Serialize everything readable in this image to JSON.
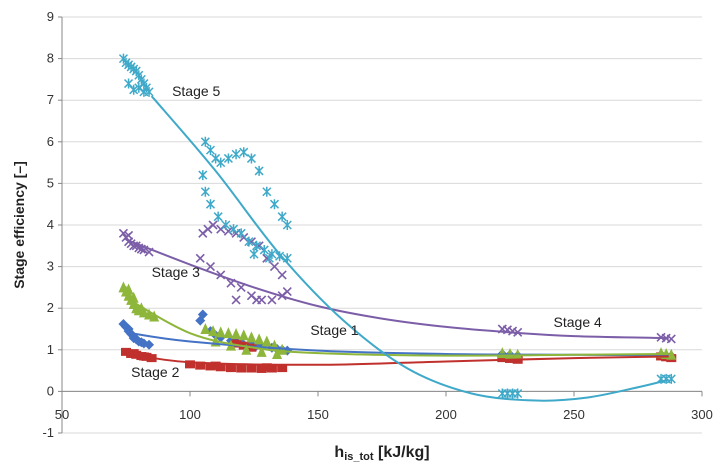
{
  "chart_data": {
    "type": "scatter",
    "title": "",
    "xlabel_main": "h",
    "xlabel_sub": "is_tot",
    "xlabel_unit": " [kJ/kg]",
    "ylabel": "Stage efficiency [–]",
    "xlim": [
      50,
      300
    ],
    "ylim": [
      -1,
      9
    ],
    "x_ticks": [
      "50",
      "100",
      "150",
      "200",
      "250",
      "300"
    ],
    "y_ticks": [
      "-1",
      "0",
      "1",
      "2",
      "3",
      "4",
      "5",
      "6",
      "7",
      "8",
      "9"
    ],
    "grid": "horizontal",
    "series": [
      {
        "name": "Stage 1",
        "color": "#4472c4",
        "marker": "diamond",
        "points": [
          [
            74,
            1.62
          ],
          [
            75,
            1.55
          ],
          [
            76,
            1.45
          ],
          [
            77,
            1.38
          ],
          [
            78,
            1.32
          ],
          [
            79,
            1.25
          ],
          [
            80,
            1.2
          ],
          [
            82,
            1.15
          ],
          [
            84,
            1.12
          ],
          [
            76,
            1.5
          ],
          [
            78,
            1.28
          ],
          [
            81,
            1.18
          ],
          [
            105,
            1.85
          ],
          [
            104,
            1.7
          ],
          [
            108,
            1.45
          ],
          [
            112,
            1.3
          ],
          [
            116,
            1.22
          ],
          [
            120,
            1.18
          ],
          [
            124,
            1.12
          ],
          [
            128,
            1.08
          ],
          [
            132,
            1.05
          ],
          [
            136,
            1.0
          ],
          [
            110,
            1.35
          ],
          [
            118,
            1.2
          ],
          [
            126,
            1.1
          ],
          [
            134,
            1.02
          ],
          [
            138,
            0.98
          ],
          [
            222,
            0.9
          ],
          [
            225,
            0.88
          ],
          [
            228,
            0.86
          ],
          [
            284,
            0.88
          ],
          [
            286,
            0.86
          ],
          [
            288,
            0.85
          ]
        ],
        "trend": [
          [
            75,
            1.42
          ],
          [
            100,
            1.2
          ],
          [
            150,
            0.98
          ],
          [
            200,
            0.9
          ],
          [
            250,
            0.88
          ],
          [
            287,
            0.87
          ]
        ]
      },
      {
        "name": "Stage 2",
        "color": "#c0302c",
        "marker": "square",
        "points": [
          [
            75,
            0.95
          ],
          [
            77,
            0.9
          ],
          [
            79,
            0.88
          ],
          [
            81,
            0.85
          ],
          [
            83,
            0.83
          ],
          [
            85,
            0.8
          ],
          [
            78,
            0.92
          ],
          [
            82,
            0.84
          ],
          [
            100,
            0.65
          ],
          [
            104,
            0.62
          ],
          [
            108,
            0.6
          ],
          [
            112,
            0.58
          ],
          [
            116,
            0.56
          ],
          [
            120,
            0.55
          ],
          [
            124,
            0.55
          ],
          [
            128,
            0.54
          ],
          [
            132,
            0.55
          ],
          [
            136,
            0.56
          ],
          [
            118,
            1.15
          ],
          [
            121,
            1.1
          ],
          [
            124,
            1.05
          ],
          [
            110,
            0.62
          ],
          [
            130,
            0.58
          ],
          [
            222,
            0.8
          ],
          [
            225,
            0.78
          ],
          [
            228,
            0.76
          ],
          [
            284,
            0.84
          ],
          [
            286,
            0.82
          ],
          [
            288,
            0.8
          ]
        ],
        "trend": [
          [
            75,
            0.92
          ],
          [
            100,
            0.7
          ],
          [
            150,
            0.64
          ],
          [
            200,
            0.72
          ],
          [
            250,
            0.8
          ],
          [
            287,
            0.84
          ]
        ]
      },
      {
        "name": "Stage 3",
        "color": "#8db63a",
        "marker": "triangle",
        "points": [
          [
            74,
            2.5
          ],
          [
            75,
            2.4
          ],
          [
            76,
            2.3
          ],
          [
            77,
            2.2
          ],
          [
            78,
            2.1
          ],
          [
            79,
            2.0
          ],
          [
            80,
            1.95
          ],
          [
            82,
            1.9
          ],
          [
            84,
            1.85
          ],
          [
            86,
            1.8
          ],
          [
            76,
            2.45
          ],
          [
            78,
            2.25
          ],
          [
            81,
            2.0
          ],
          [
            106,
            1.5
          ],
          [
            109,
            1.45
          ],
          [
            112,
            1.42
          ],
          [
            115,
            1.4
          ],
          [
            118,
            1.38
          ],
          [
            121,
            1.35
          ],
          [
            124,
            1.3
          ],
          [
            127,
            1.25
          ],
          [
            130,
            1.2
          ],
          [
            133,
            1.1
          ],
          [
            136,
            1.0
          ],
          [
            110,
            1.2
          ],
          [
            116,
            1.1
          ],
          [
            122,
            1.0
          ],
          [
            128,
            0.95
          ],
          [
            134,
            0.9
          ],
          [
            222,
            0.92
          ],
          [
            225,
            0.9
          ],
          [
            228,
            0.88
          ],
          [
            284,
            0.92
          ],
          [
            286,
            0.9
          ],
          [
            288,
            0.88
          ]
        ],
        "trend": [
          [
            75,
            2.25
          ],
          [
            100,
            1.4
          ],
          [
            125,
            1.05
          ],
          [
            150,
            0.92
          ],
          [
            200,
            0.86
          ],
          [
            250,
            0.88
          ],
          [
            287,
            0.9
          ]
        ]
      },
      {
        "name": "Stage 4",
        "color": "#7c5ea8",
        "marker": "x",
        "points": [
          [
            74,
            3.8
          ],
          [
            75,
            3.7
          ],
          [
            76,
            3.6
          ],
          [
            77,
            3.55
          ],
          [
            78,
            3.5
          ],
          [
            80,
            3.45
          ],
          [
            82,
            3.4
          ],
          [
            84,
            3.35
          ],
          [
            76,
            3.75
          ],
          [
            79,
            3.5
          ],
          [
            81,
            3.42
          ],
          [
            105,
            3.8
          ],
          [
            107,
            3.9
          ],
          [
            109,
            4.0
          ],
          [
            112,
            3.9
          ],
          [
            115,
            3.85
          ],
          [
            118,
            3.8
          ],
          [
            121,
            3.7
          ],
          [
            124,
            3.6
          ],
          [
            127,
            3.5
          ],
          [
            130,
            3.2
          ],
          [
            133,
            3.0
          ],
          [
            136,
            2.8
          ],
          [
            104,
            3.2
          ],
          [
            108,
            3.0
          ],
          [
            112,
            2.8
          ],
          [
            116,
            2.6
          ],
          [
            120,
            2.5
          ],
          [
            124,
            2.3
          ],
          [
            128,
            2.2
          ],
          [
            132,
            2.2
          ],
          [
            136,
            2.3
          ],
          [
            138,
            2.4
          ],
          [
            118,
            2.2
          ],
          [
            126,
            2.2
          ],
          [
            222,
            1.5
          ],
          [
            224,
            1.48
          ],
          [
            226,
            1.45
          ],
          [
            228,
            1.42
          ],
          [
            284,
            1.3
          ],
          [
            286,
            1.28
          ],
          [
            288,
            1.26
          ]
        ],
        "trend": [
          [
            75,
            3.65
          ],
          [
            100,
            3.05
          ],
          [
            125,
            2.5
          ],
          [
            150,
            2.05
          ],
          [
            175,
            1.75
          ],
          [
            200,
            1.55
          ],
          [
            225,
            1.42
          ],
          [
            250,
            1.33
          ],
          [
            287,
            1.28
          ]
        ]
      },
      {
        "name": "Stage 5",
        "color": "#3fa9c9",
        "marker": "star",
        "points": [
          [
            74,
            8.0
          ],
          [
            75,
            7.9
          ],
          [
            76,
            7.85
          ],
          [
            77,
            7.8
          ],
          [
            78,
            7.75
          ],
          [
            79,
            7.7
          ],
          [
            80,
            7.6
          ],
          [
            81,
            7.5
          ],
          [
            82,
            7.4
          ],
          [
            83,
            7.3
          ],
          [
            84,
            7.2
          ],
          [
            76,
            7.4
          ],
          [
            78,
            7.25
          ],
          [
            80,
            7.3
          ],
          [
            82,
            7.2
          ],
          [
            105,
            5.2
          ],
          [
            106,
            6.0
          ],
          [
            108,
            5.8
          ],
          [
            110,
            5.6
          ],
          [
            112,
            5.5
          ],
          [
            115,
            5.6
          ],
          [
            118,
            5.7
          ],
          [
            121,
            5.75
          ],
          [
            124,
            5.6
          ],
          [
            127,
            5.3
          ],
          [
            130,
            4.8
          ],
          [
            133,
            4.5
          ],
          [
            136,
            4.2
          ],
          [
            138,
            4.0
          ],
          [
            106,
            4.8
          ],
          [
            108,
            4.5
          ],
          [
            111,
            4.2
          ],
          [
            114,
            4.0
          ],
          [
            117,
            3.9
          ],
          [
            120,
            3.8
          ],
          [
            123,
            3.6
          ],
          [
            126,
            3.5
          ],
          [
            129,
            3.4
          ],
          [
            132,
            3.3
          ],
          [
            135,
            3.25
          ],
          [
            138,
            3.2
          ],
          [
            125,
            3.3
          ],
          [
            131,
            3.2
          ],
          [
            222,
            -0.05
          ],
          [
            224,
            -0.05
          ],
          [
            226,
            -0.05
          ],
          [
            228,
            -0.05
          ],
          [
            284,
            0.3
          ],
          [
            286,
            0.3
          ],
          [
            288,
            0.3
          ]
        ],
        "trend": [
          [
            85,
            7.1
          ],
          [
            110,
            5.3
          ],
          [
            135,
            3.3
          ],
          [
            160,
            1.7
          ],
          [
            185,
            0.55
          ],
          [
            210,
            -0.05
          ],
          [
            235,
            -0.22
          ],
          [
            255,
            -0.15
          ],
          [
            275,
            0.1
          ],
          [
            287,
            0.28
          ]
        ]
      }
    ],
    "labels": [
      {
        "text": "Stage 5",
        "x": 93,
        "y": 7.1
      },
      {
        "text": "Stage 3",
        "x": 85,
        "y": 2.75
      },
      {
        "text": "Stage 1",
        "x": 147,
        "y": 1.35
      },
      {
        "text": "Stage 2",
        "x": 77,
        "y": 0.35
      },
      {
        "text": "Stage 4",
        "x": 242,
        "y": 1.55
      }
    ]
  }
}
